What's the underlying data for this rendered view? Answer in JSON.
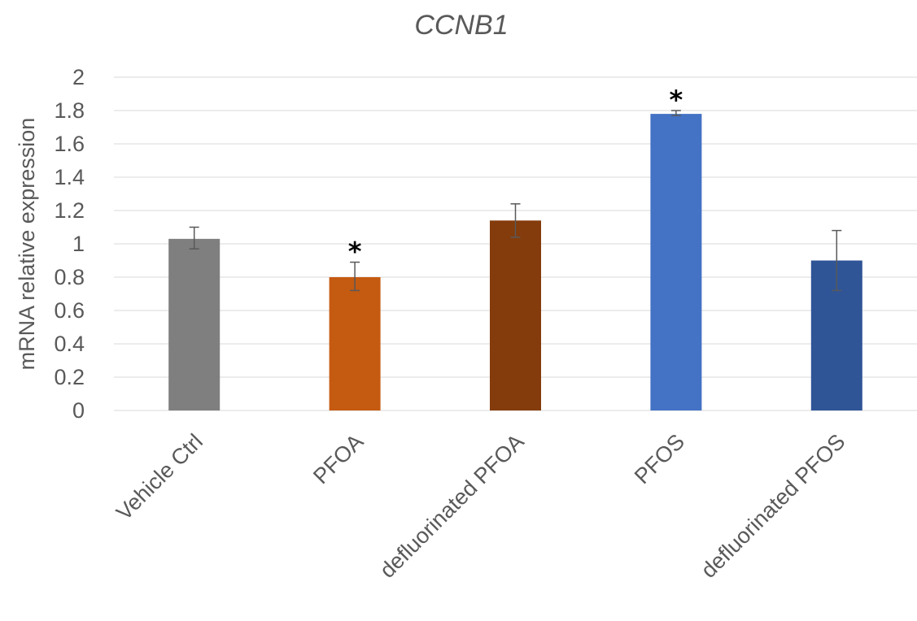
{
  "chart_data": {
    "type": "bar",
    "title": "CCNB1",
    "xlabel": "",
    "ylabel": "mRNA relative expression",
    "ylim": [
      0,
      2
    ],
    "yticks": [
      0,
      0.2,
      0.4,
      0.6,
      0.8,
      1,
      1.2,
      1.4,
      1.6,
      1.8,
      2
    ],
    "ytick_labels": [
      "0",
      "0.2",
      "0.4",
      "0.6",
      "0.8",
      "1",
      "1.2",
      "1.4",
      "1.6",
      "1.8",
      "2"
    ],
    "grid": true,
    "legend": "none",
    "categories": [
      "Vehicle Ctrl",
      "PFOA",
      "defluorinated PFOA",
      "PFOS",
      "defluorinated PFOS"
    ],
    "values": [
      1.03,
      0.8,
      1.14,
      1.78,
      0.9
    ],
    "error_low": [
      0.97,
      0.72,
      1.04,
      1.77,
      0.72
    ],
    "error_high": [
      1.1,
      0.89,
      1.24,
      1.8,
      1.08
    ],
    "significance": [
      "",
      "*",
      "",
      "*",
      ""
    ],
    "colors": [
      "#7f7f7f",
      "#c55a11",
      "#843c0c",
      "#4472c4",
      "#2f5597"
    ]
  }
}
